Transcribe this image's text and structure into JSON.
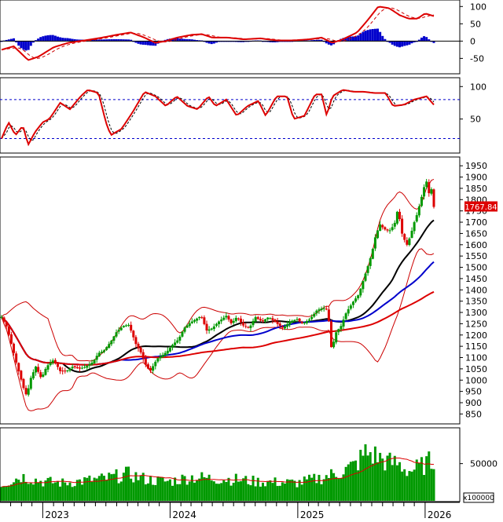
{
  "chart_data": {
    "type": "candlestick",
    "title": "",
    "grid": false,
    "x_axis": {
      "type": "date",
      "ticks": [
        "2023",
        "2024",
        "2025",
        "2026"
      ]
    },
    "last_price_label": "1767.84",
    "colors": {
      "up": "#009900",
      "down": "#dd0000",
      "ma_short": "#000000",
      "ma_mid": "#0000cc",
      "ma_long": "#dd0000",
      "bollinger": "#cc0000",
      "volume": "#009900",
      "axis": "#000000",
      "dashed_level": "#0000cc",
      "price_tag_bg": "#dd0000"
    },
    "price_panel": {
      "y_ticks": [
        850,
        900,
        950,
        1000,
        1050,
        1100,
        1150,
        1200,
        1250,
        1300,
        1350,
        1400,
        1450,
        1500,
        1550,
        1600,
        1650,
        1700,
        1750,
        1800,
        1850,
        1900,
        1950
      ],
      "ylim": [
        820,
        1975
      ],
      "waypoints_close": [
        [
          "2022-09-05",
          1280
        ],
        [
          "2022-09-20",
          1235
        ],
        [
          "2022-10-05",
          1150
        ],
        [
          "2022-10-20",
          1060
        ],
        [
          "2022-11-08",
          960
        ],
        [
          "2022-11-16",
          930
        ],
        [
          "2022-11-28",
          1010
        ],
        [
          "2022-12-12",
          1060
        ],
        [
          "2022-12-28",
          1007
        ],
        [
          "2023-01-12",
          1060
        ],
        [
          "2023-02-01",
          1090
        ],
        [
          "2023-02-20",
          1040
        ],
        [
          "2023-03-10",
          1040
        ],
        [
          "2023-03-28",
          1060
        ],
        [
          "2023-04-15",
          1050
        ],
        [
          "2023-05-05",
          1060
        ],
        [
          "2023-05-25",
          1080
        ],
        [
          "2023-06-10",
          1120
        ],
        [
          "2023-06-25",
          1130
        ],
        [
          "2023-07-15",
          1170
        ],
        [
          "2023-08-01",
          1215
        ],
        [
          "2023-08-20",
          1240
        ],
        [
          "2023-09-05",
          1245
        ],
        [
          "2023-09-25",
          1160
        ],
        [
          "2023-10-10",
          1120
        ],
        [
          "2023-10-25",
          1060
        ],
        [
          "2023-11-05",
          1040
        ],
        [
          "2023-11-25",
          1095
        ],
        [
          "2023-12-10",
          1110
        ],
        [
          "2023-12-25",
          1130
        ],
        [
          "2024-01-10",
          1160
        ],
        [
          "2024-01-25",
          1180
        ],
        [
          "2024-02-10",
          1230
        ],
        [
          "2024-02-28",
          1255
        ],
        [
          "2024-03-15",
          1270
        ],
        [
          "2024-03-30",
          1285
        ],
        [
          "2024-04-15",
          1220
        ],
        [
          "2024-05-01",
          1230
        ],
        [
          "2024-05-20",
          1260
        ],
        [
          "2024-06-10",
          1285
        ],
        [
          "2024-06-25",
          1250
        ],
        [
          "2024-07-10",
          1280
        ],
        [
          "2024-07-30",
          1240
        ],
        [
          "2024-08-15",
          1230
        ],
        [
          "2024-09-01",
          1280
        ],
        [
          "2024-09-20",
          1260
        ],
        [
          "2024-10-10",
          1280
        ],
        [
          "2024-10-30",
          1255
        ],
        [
          "2024-11-20",
          1230
        ],
        [
          "2024-12-10",
          1260
        ],
        [
          "2024-12-30",
          1270
        ],
        [
          "2025-01-15",
          1250
        ],
        [
          "2025-02-05",
          1270
        ],
        [
          "2025-02-25",
          1310
        ],
        [
          "2025-03-15",
          1320
        ],
        [
          "2025-03-28",
          1310
        ],
        [
          "2025-04-08",
          1130
        ],
        [
          "2025-04-20",
          1210
        ],
        [
          "2025-05-05",
          1240
        ],
        [
          "2025-05-20",
          1300
        ],
        [
          "2025-06-10",
          1350
        ],
        [
          "2025-06-25",
          1380
        ],
        [
          "2025-07-05",
          1430
        ],
        [
          "2025-07-20",
          1500
        ],
        [
          "2025-08-01",
          1560
        ],
        [
          "2025-08-12",
          1640
        ],
        [
          "2025-08-25",
          1690
        ],
        [
          "2025-09-05",
          1670
        ],
        [
          "2025-09-20",
          1660
        ],
        [
          "2025-10-05",
          1690
        ],
        [
          "2025-10-15",
          1760
        ],
        [
          "2025-10-28",
          1640
        ],
        [
          "2025-11-10",
          1600
        ],
        [
          "2025-11-20",
          1640
        ],
        [
          "2025-12-01",
          1700
        ],
        [
          "2025-12-10",
          1740
        ],
        [
          "2025-12-20",
          1800
        ],
        [
          "2026-01-02",
          1880
        ],
        [
          "2026-01-08",
          1880
        ],
        [
          "2026-01-15",
          1790
        ],
        [
          "2026-01-20",
          1860
        ],
        [
          "2026-01-26",
          1767.84
        ]
      ]
    },
    "macd_panel": {
      "y_ticks": [
        -50,
        0,
        50,
        100
      ],
      "ylim": [
        -90,
        112
      ],
      "waypoints": [
        [
          "2022-09-05",
          -25
        ],
        [
          "2022-10-10",
          -15
        ],
        [
          "2022-11-20",
          -55
        ],
        [
          "2022-12-20",
          -45
        ],
        [
          "2023-02-01",
          -18
        ],
        [
          "2023-03-15",
          -5
        ],
        [
          "2023-05-01",
          2
        ],
        [
          "2023-06-20",
          10
        ],
        [
          "2023-08-10",
          20
        ],
        [
          "2023-09-10",
          25
        ],
        [
          "2023-10-20",
          10
        ],
        [
          "2023-11-20",
          -5
        ],
        [
          "2023-12-20",
          0
        ],
        [
          "2024-01-20",
          10
        ],
        [
          "2024-03-01",
          18
        ],
        [
          "2024-04-01",
          20
        ],
        [
          "2024-05-01",
          10
        ],
        [
          "2024-06-15",
          10
        ],
        [
          "2024-08-01",
          5
        ],
        [
          "2024-09-15",
          8
        ],
        [
          "2024-11-01",
          2
        ],
        [
          "2024-12-15",
          2
        ],
        [
          "2025-02-01",
          5
        ],
        [
          "2025-03-10",
          10
        ],
        [
          "2025-04-10",
          -5
        ],
        [
          "2025-05-10",
          5
        ],
        [
          "2025-06-20",
          25
        ],
        [
          "2025-07-20",
          60
        ],
        [
          "2025-08-20",
          100
        ],
        [
          "2025-09-20",
          95
        ],
        [
          "2025-10-20",
          75
        ],
        [
          "2025-11-15",
          65
        ],
        [
          "2025-12-10",
          65
        ],
        [
          "2026-01-01",
          80
        ],
        [
          "2026-01-26",
          72
        ]
      ]
    },
    "stochastic_panel": {
      "y_ticks": [
        50,
        100
      ],
      "ylim": [
        0,
        110
      ],
      "levels": [
        80,
        20
      ],
      "waypoints": [
        [
          "2022-09-05",
          20
        ],
        [
          "2022-09-25",
          45
        ],
        [
          "2022-10-15",
          25
        ],
        [
          "2022-11-05",
          40
        ],
        [
          "2022-11-20",
          10
        ],
        [
          "2022-12-10",
          30
        ],
        [
          "2023-01-01",
          45
        ],
        [
          "2023-01-20",
          50
        ],
        [
          "2023-02-20",
          75
        ],
        [
          "2023-03-20",
          65
        ],
        [
          "2023-04-20",
          85
        ],
        [
          "2023-05-10",
          95
        ],
        [
          "2023-06-10",
          90
        ],
        [
          "2023-07-01",
          45
        ],
        [
          "2023-07-15",
          25
        ],
        [
          "2023-08-15",
          35
        ],
        [
          "2023-09-15",
          60
        ],
        [
          "2023-10-20",
          92
        ],
        [
          "2023-11-20",
          85
        ],
        [
          "2023-12-20",
          70
        ],
        [
          "2024-01-20",
          85
        ],
        [
          "2024-02-20",
          70
        ],
        [
          "2024-03-20",
          65
        ],
        [
          "2024-04-20",
          85
        ],
        [
          "2024-05-10",
          70
        ],
        [
          "2024-06-10",
          80
        ],
        [
          "2024-07-10",
          55
        ],
        [
          "2024-08-10",
          70
        ],
        [
          "2024-09-10",
          78
        ],
        [
          "2024-10-01",
          55
        ],
        [
          "2024-11-01",
          85
        ],
        [
          "2024-12-01",
          85
        ],
        [
          "2024-12-20",
          50
        ],
        [
          "2025-01-20",
          55
        ],
        [
          "2025-02-20",
          88
        ],
        [
          "2025-03-10",
          88
        ],
        [
          "2025-03-25",
          55
        ],
        [
          "2025-04-10",
          85
        ],
        [
          "2025-05-10",
          95
        ],
        [
          "2025-06-10",
          92
        ],
        [
          "2025-07-10",
          92
        ],
        [
          "2025-08-10",
          90
        ],
        [
          "2025-09-10",
          90
        ],
        [
          "2025-10-01",
          70
        ],
        [
          "2025-11-01",
          72
        ],
        [
          "2025-12-01",
          80
        ],
        [
          "2026-01-05",
          85
        ],
        [
          "2026-01-26",
          72
        ]
      ]
    },
    "volume_panel": {
      "unit_label": "x100000",
      "y_ticks": [
        50000
      ],
      "ylim": [
        0,
        95000
      ],
      "waypoints": [
        [
          "2022-09-05",
          22000
        ],
        [
          "2022-11-01",
          33000
        ],
        [
          "2023-01-01",
          26000
        ],
        [
          "2023-03-01",
          24000
        ],
        [
          "2023-05-01",
          27000
        ],
        [
          "2023-07-01",
          30000
        ],
        [
          "2023-09-01",
          36000
        ],
        [
          "2023-11-01",
          28000
        ],
        [
          "2024-01-01",
          26000
        ],
        [
          "2024-03-01",
          32000
        ],
        [
          "2024-05-01",
          30000
        ],
        [
          "2024-07-01",
          29000
        ],
        [
          "2024-09-01",
          26000
        ],
        [
          "2024-11-01",
          25000
        ],
        [
          "2025-01-01",
          24000
        ],
        [
          "2025-03-01",
          30000
        ],
        [
          "2025-05-01",
          38000
        ],
        [
          "2025-06-15",
          48000
        ],
        [
          "2025-07-15",
          65000
        ],
        [
          "2025-08-15",
          60000
        ],
        [
          "2025-09-15",
          52000
        ],
        [
          "2025-10-15",
          50000
        ],
        [
          "2025-11-15",
          40000
        ],
        [
          "2025-12-15",
          45000
        ],
        [
          "2026-01-26",
          55000
        ]
      ]
    }
  }
}
